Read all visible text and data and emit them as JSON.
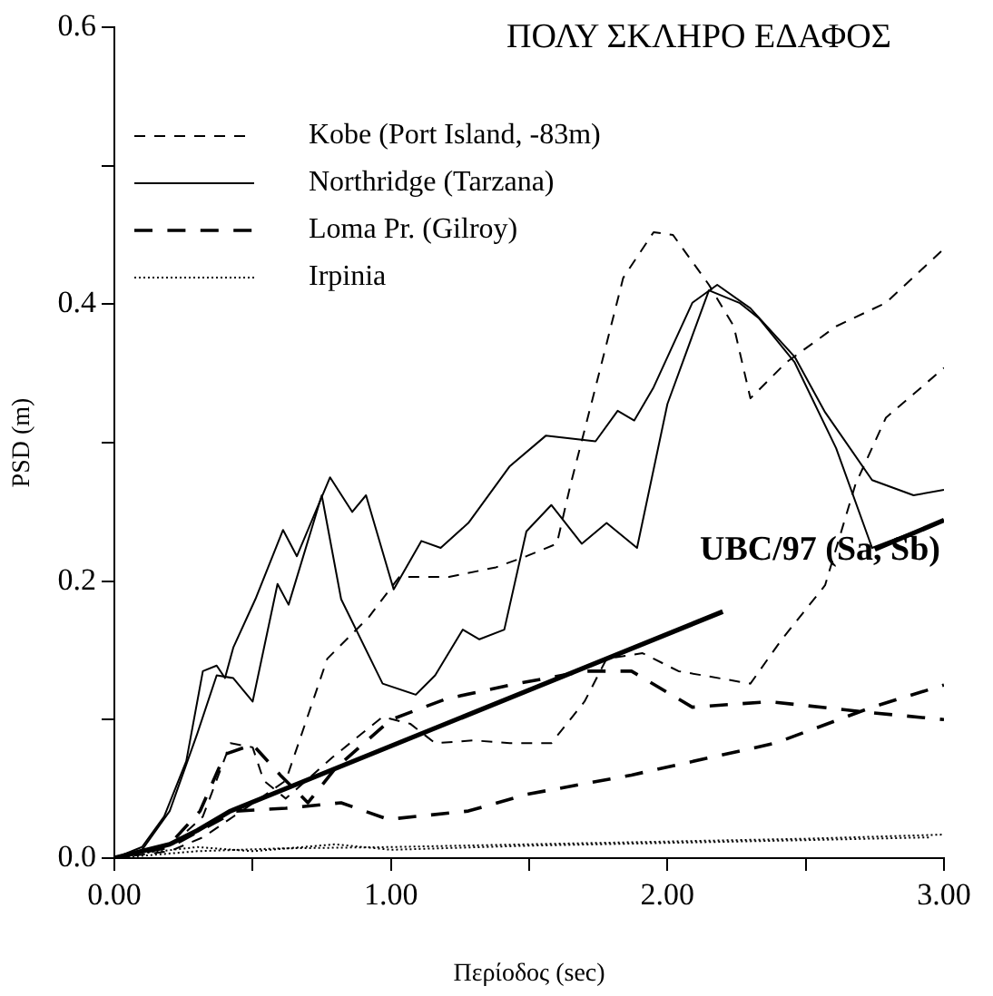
{
  "chart_data": {
    "type": "line",
    "title": "ΠΟΛΥ ΣΚΛΗΡΟ ΕΔΑΦΟΣ",
    "xlabel": "Περίοδος (sec)",
    "ylabel": "PSD (m)",
    "xlim": [
      0,
      3
    ],
    "ylim": [
      0,
      0.6
    ],
    "xticks": [
      {
        "value": 0,
        "label": "0.00"
      },
      {
        "value": 0.5,
        "label": null
      },
      {
        "value": 1,
        "label": "1.00"
      },
      {
        "value": 1.5,
        "label": null
      },
      {
        "value": 2,
        "label": "2.00"
      },
      {
        "value": 2.5,
        "label": null
      },
      {
        "value": 3,
        "label": "3.00"
      }
    ],
    "yticks": [
      {
        "value": 0,
        "label": "0.0"
      },
      {
        "value": 0.1,
        "label": null
      },
      {
        "value": 0.2,
        "label": "0.2"
      },
      {
        "value": 0.3,
        "label": null
      },
      {
        "value": 0.4,
        "label": "0.4"
      },
      {
        "value": 0.5,
        "label": null
      },
      {
        "value": 0.6,
        "label": "0.6"
      }
    ],
    "grid": false,
    "legend": "top left",
    "marker": "none",
    "annotations": [
      "UBC/97 (Sa, Sb)"
    ],
    "series": [
      {
        "name": "Kobe (Port Island, -83m)",
        "color": "#000000",
        "line_style": "dashed",
        "x": [
          0,
          0.2,
          0.32,
          0.46,
          0.62,
          0.77,
          0.92,
          1.03,
          1.21,
          1.38,
          1.49,
          1.6,
          1.65,
          1.74,
          1.84,
          1.95,
          2.02,
          2.15,
          2.24,
          2.3,
          2.43,
          2.61,
          2.79,
          3.0
        ],
        "values": [
          0,
          0.005,
          0.015,
          0.034,
          0.056,
          0.144,
          0.174,
          0.203,
          0.203,
          0.21,
          0.218,
          0.227,
          0.27,
          0.34,
          0.419,
          0.452,
          0.45,
          0.414,
          0.384,
          0.332,
          0.358,
          0.384,
          0.401,
          0.44
        ]
      },
      {
        "color": "#000000",
        "line_style": "dashed",
        "x": [
          0,
          0.2,
          0.32,
          0.42,
          0.5,
          0.54,
          0.62,
          0.79,
          0.97,
          1.07,
          1.16,
          1.3,
          1.43,
          1.58,
          1.7,
          1.78,
          1.91,
          2.04,
          2.3,
          2.41,
          2.57,
          2.68,
          2.79,
          3.0
        ],
        "values": [
          0,
          0.008,
          0.03,
          0.083,
          0.08,
          0.056,
          0.043,
          0.073,
          0.102,
          0.097,
          0.083,
          0.085,
          0.083,
          0.083,
          0.113,
          0.144,
          0.148,
          0.135,
          0.126,
          0.157,
          0.197,
          0.27,
          0.318,
          0.354
        ]
      },
      {
        "name": "Northridge (Tarzana)",
        "color": "#000000",
        "line_style": "solid",
        "x": [
          0,
          0.1,
          0.18,
          0.26,
          0.32,
          0.37,
          0.4,
          0.43,
          0.51,
          0.61,
          0.66,
          0.78,
          0.86,
          0.91,
          1.01,
          1.11,
          1.18,
          1.28,
          1.43,
          1.56,
          1.74,
          1.82,
          1.88,
          1.95,
          2.09,
          2.18,
          2.3,
          2.46,
          2.57,
          2.74,
          2.89,
          3.0
        ],
        "values": [
          0,
          0.008,
          0.03,
          0.07,
          0.135,
          0.139,
          0.13,
          0.152,
          0.187,
          0.237,
          0.218,
          0.275,
          0.25,
          0.262,
          0.194,
          0.229,
          0.224,
          0.242,
          0.283,
          0.305,
          0.301,
          0.323,
          0.316,
          0.34,
          0.401,
          0.414,
          0.397,
          0.362,
          0.322,
          0.273,
          0.262,
          0.266
        ]
      },
      {
        "color": "#000000",
        "line_style": "solid",
        "x": [
          0,
          0.1,
          0.2,
          0.3,
          0.37,
          0.43,
          0.5,
          0.59,
          0.63,
          0.75,
          0.82,
          0.97,
          1.09,
          1.16,
          1.26,
          1.32,
          1.41,
          1.49,
          1.58,
          1.69,
          1.78,
          1.89,
          2.0,
          2.15,
          2.26,
          2.33,
          2.46,
          2.61,
          2.74,
          3.0
        ],
        "values": [
          0,
          0.006,
          0.034,
          0.09,
          0.132,
          0.13,
          0.113,
          0.198,
          0.183,
          0.262,
          0.187,
          0.126,
          0.118,
          0.132,
          0.165,
          0.158,
          0.165,
          0.236,
          0.255,
          0.227,
          0.242,
          0.224,
          0.328,
          0.41,
          0.401,
          0.39,
          0.358,
          0.296,
          0.224,
          0.244
        ]
      },
      {
        "name": "Loma Pr. (Gilroy)",
        "color": "#000000",
        "line_style": "dashed",
        "x": [
          0,
          0.2,
          0.31,
          0.4,
          0.5,
          0.6,
          0.7,
          0.8,
          1.0,
          1.2,
          1.43,
          1.7,
          1.87,
          2.09,
          2.37,
          2.74,
          3.0
        ],
        "values": [
          0,
          0.01,
          0.034,
          0.075,
          0.082,
          0.06,
          0.04,
          0.065,
          0.1,
          0.115,
          0.125,
          0.135,
          0.135,
          0.109,
          0.113,
          0.105,
          0.1
        ]
      },
      {
        "color": "#000000",
        "line_style": "dashed",
        "x": [
          0,
          0.2,
          0.44,
          0.62,
          0.82,
          0.99,
          1.28,
          1.49,
          1.87,
          2.39,
          2.74,
          3.0
        ],
        "values": [
          0,
          0.008,
          0.034,
          0.036,
          0.04,
          0.028,
          0.034,
          0.046,
          0.06,
          0.083,
          0.109,
          0.125
        ]
      },
      {
        "name": "Irpinia",
        "color": "#000000",
        "line_style": "dotted",
        "x": [
          0,
          0.3,
          0.6,
          1.0,
          1.5,
          2.0,
          2.5,
          3.0
        ],
        "values": [
          0,
          0.005,
          0.007,
          0.008,
          0.01,
          0.012,
          0.014,
          0.017
        ]
      },
      {
        "color": "#000000",
        "line_style": "dotted",
        "x": [
          0.12,
          0.3,
          0.5,
          0.8,
          1.0,
          1.5,
          2.0,
          2.5,
          2.95
        ],
        "values": [
          0.004,
          0.008,
          0.005,
          0.01,
          0.006,
          0.009,
          0.011,
          0.013,
          0.015
        ]
      },
      {
        "color": "#000000",
        "line_style": "solid",
        "x": [
          0,
          0.2,
          0.3,
          0.42,
          2.2,
          2.5,
          2.75,
          3.0
        ],
        "values": [
          0,
          0.01,
          0.02,
          0.034,
          0.178,
          null,
          0.223,
          0.244
        ]
      }
    ]
  }
}
